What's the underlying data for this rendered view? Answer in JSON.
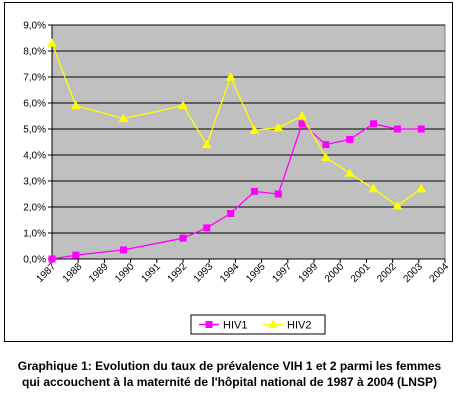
{
  "chart_data": {
    "type": "line",
    "ylim": [
      0,
      9
    ],
    "y_ticks": [
      "0,0%",
      "1,0%",
      "2,0%",
      "3,0%",
      "4,0%",
      "5,0%",
      "6,0%",
      "7,0%",
      "8,0%",
      "9,0%"
    ],
    "x_tick_labels": [
      "1987",
      "1988",
      "1989",
      "1990",
      "1991",
      "1992",
      "1993",
      "1994",
      "1995",
      "1997",
      "1999",
      "2000",
      "2001",
      "2002",
      "2003",
      "2004"
    ],
    "grid": true,
    "legend_position": "bottom",
    "plot_background": "#c0c0c0",
    "series": [
      {
        "name": "HIV1",
        "color": "#ff00ff",
        "marker": "square",
        "x": [
          1987,
          1988,
          1990,
          1992.5,
          1993.5,
          1994.5,
          1995.5,
          1996.5,
          1997.5,
          1998.5,
          1999.5,
          2000.5,
          2001.5,
          2002.5
        ],
        "values": [
          0.0,
          0.15,
          0.35,
          0.8,
          1.2,
          1.75,
          2.6,
          2.5,
          5.2,
          4.4,
          4.6,
          5.2,
          5.0,
          5.0
        ]
      },
      {
        "name": "HIV2",
        "color": "#ffff00",
        "marker": "triangle",
        "x": [
          1987,
          1988,
          1990,
          1992.5,
          1993.5,
          1994.5,
          1995.5,
          1996.5,
          1997.5,
          1998.5,
          1999.5,
          2000.5,
          2001.5,
          2002.5
        ],
        "values": [
          8.3,
          5.9,
          5.4,
          5.9,
          4.4,
          7.0,
          4.95,
          5.05,
          5.5,
          3.9,
          3.3,
          2.7,
          2.05,
          2.7
        ]
      }
    ]
  },
  "caption": {
    "line1": "Graphique 1: Evolution du taux de prévalence VIH 1 et 2 parmi les femmes",
    "line2": "qui accouchent à la maternité de l'hôpital national de 1987 à 2004 (LNSP)"
  }
}
